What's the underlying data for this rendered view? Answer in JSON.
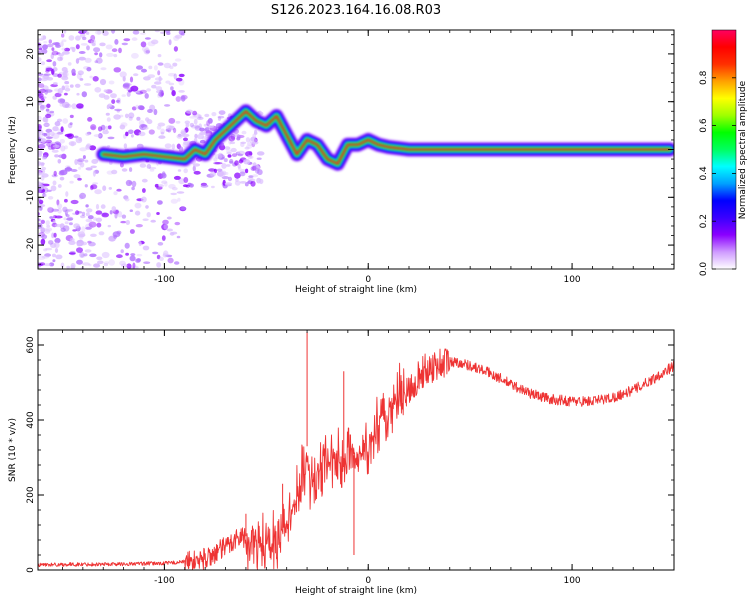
{
  "figure_title": "S126.2023.164.16.08.R03",
  "chart_data": [
    {
      "type": "heatmap",
      "title": "S126.2023.164.16.08.R03",
      "xlabel": "Height of straight line (km)",
      "ylabel": "Frequency (Hz)",
      "xlim": [
        -162,
        150
      ],
      "ylim": [
        -25,
        25
      ],
      "xticks": [
        -100,
        0,
        100
      ],
      "yticks": [
        -20,
        -10,
        0,
        10,
        20
      ],
      "colorbar": {
        "label": "Normalized spectral amplitude",
        "range": [
          0,
          1
        ],
        "ticks": [
          0.0,
          0.2,
          0.4,
          0.6,
          0.8
        ],
        "colormap": [
          "#ffffff",
          "#cf9bff",
          "#8a00ff",
          "#3a00ff",
          "#0000ff",
          "#00a0ff",
          "#00ffff",
          "#00ff60",
          "#00ff00",
          "#a0ff00",
          "#ffff00",
          "#ffa000",
          "#ff3000",
          "#ff0000",
          "#ff0060"
        ]
      },
      "ridge": {
        "description": "dominant frequency track",
        "x": [
          -130,
          -120,
          -110,
          -100,
          -90,
          -85,
          -80,
          -75,
          -70,
          -65,
          -60,
          -55,
          -50,
          -45,
          -40,
          -35,
          -30,
          -25,
          -20,
          -15,
          -10,
          -5,
          0,
          5,
          10,
          20,
          40,
          60,
          80,
          100,
          120,
          148
        ],
        "y": [
          -1,
          -1.5,
          -1,
          -1.5,
          -2,
          0,
          -1,
          2,
          4,
          6,
          8,
          6,
          5,
          7,
          3,
          -1,
          2,
          1,
          -2,
          -3,
          1,
          1,
          2,
          1,
          0.5,
          0,
          0,
          0,
          0,
          0,
          0,
          0
        ]
      },
      "grid": false
    },
    {
      "type": "line",
      "xlabel": "Height of straight line (km)",
      "ylabel": "SNR (10 * v/v)",
      "xlim": [
        -162,
        150
      ],
      "ylim": [
        0,
        640
      ],
      "xticks": [
        -100,
        0,
        100
      ],
      "yticks": [
        0,
        200,
        400,
        600
      ],
      "color": "#ee3333",
      "grid": false,
      "series": [
        {
          "x": [
            -162,
            -140,
            -120,
            -100,
            -90,
            -80,
            -75,
            -70,
            -65,
            -60,
            -55,
            -50,
            -45,
            -40,
            -35,
            -32,
            -30,
            -28,
            -25,
            -20,
            -15,
            -10,
            -5,
            0,
            5,
            10,
            15,
            20,
            25,
            30,
            35,
            40,
            45,
            50,
            60,
            70,
            80,
            90,
            100,
            110,
            120,
            130,
            140,
            150
          ],
          "y": [
            14,
            15,
            16,
            18,
            22,
            30,
            45,
            60,
            85,
            90,
            70,
            60,
            80,
            130,
            190,
            250,
            330,
            200,
            260,
            280,
            290,
            300,
            310,
            320,
            380,
            420,
            450,
            480,
            520,
            540,
            550,
            556,
            553,
            545,
            525,
            495,
            470,
            455,
            450,
            450,
            460,
            480,
            510,
            545
          ]
        }
      ],
      "spikes": [
        {
          "x": -30,
          "y": 635
        },
        {
          "x": -12,
          "y": 530
        },
        {
          "x": -7,
          "y": 40
        },
        {
          "x": -60,
          "y": 150
        },
        {
          "x": -42,
          "y": 230
        }
      ]
    }
  ]
}
